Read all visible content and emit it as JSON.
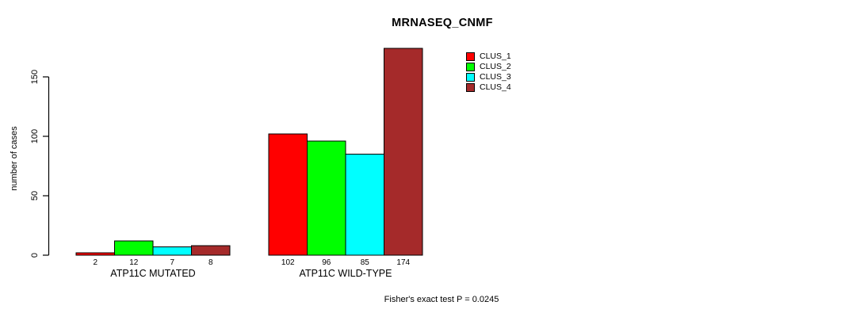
{
  "chart_data": {
    "type": "bar",
    "title": "MRNASEQ_CNMF",
    "ylabel": "number of cases",
    "xlabel": "",
    "ylim": [
      0,
      150
    ],
    "yticks": [
      0,
      50,
      100,
      150
    ],
    "grid": false,
    "legend_position": "top-right",
    "bar_border_color": "#000000",
    "series": [
      {
        "name": "CLUS_1",
        "color": "#FF0000"
      },
      {
        "name": "CLUS_2",
        "color": "#00FF00"
      },
      {
        "name": "CLUS_3",
        "color": "#00FFFF"
      },
      {
        "name": "CLUS_4",
        "color": "#A52A2A"
      }
    ],
    "groups": [
      {
        "label": "ATP11C MUTATED",
        "values": [
          2,
          12,
          7,
          8
        ]
      },
      {
        "label": "ATP11C WILD-TYPE",
        "values": [
          102,
          96,
          85,
          174
        ]
      }
    ],
    "annotation": "Fisher's exact test P = 0.0245"
  }
}
